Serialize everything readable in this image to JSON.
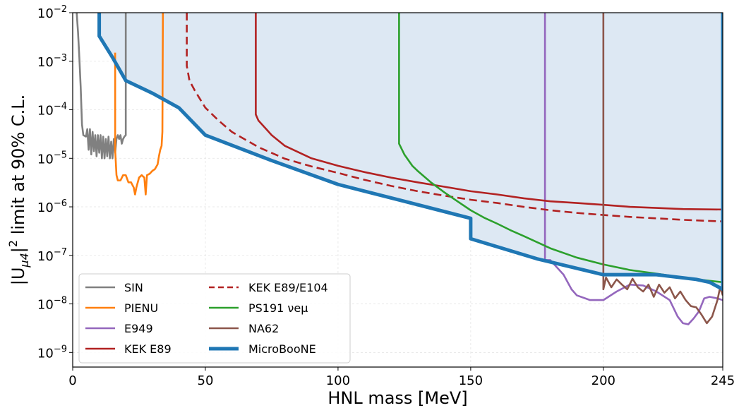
{
  "chart_data": {
    "type": "line",
    "xlabel": "HNL mass [MeV]",
    "ylabel_parts": {
      "pre": "|U",
      "sub": "μ4",
      "sup": "2",
      "post": " limit at 90% C.L."
    },
    "log_y": true,
    "xlim": [
      0,
      245
    ],
    "ylim": [
      5e-10,
      0.01
    ],
    "x_ticks": [
      0,
      50,
      100,
      150,
      200,
      245
    ],
    "x_tick_labels": [
      "0",
      "50",
      "100",
      "150",
      "200",
      "245"
    ],
    "y_ticks": [
      1e-09,
      1e-08,
      1e-07,
      1e-06,
      1e-05,
      0.0001,
      0.001,
      0.01
    ],
    "y_tick_labels": [
      {
        "base": "10",
        "exp": "−9"
      },
      {
        "base": "10",
        "exp": "−8"
      },
      {
        "base": "10",
        "exp": "−7"
      },
      {
        "base": "10",
        "exp": "−6"
      },
      {
        "base": "10",
        "exp": "−5"
      },
      {
        "base": "10",
        "exp": "−4"
      },
      {
        "base": "10",
        "exp": "−3"
      },
      {
        "base": "10",
        "exp": "−2"
      }
    ],
    "grid": true,
    "legend_position": "lower-left",
    "shaded_region": {
      "color": "#dde8f3",
      "bounded_by": "MicroBooNE"
    },
    "series": [
      {
        "name": "SIN",
        "color": "#808080",
        "dash": false,
        "points": [
          [
            1.5,
            0.01
          ],
          [
            2,
            0.004
          ],
          [
            2.5,
            0.0012
          ],
          [
            3,
            0.0003
          ],
          [
            3.5,
            5e-05
          ],
          [
            4,
            3e-05
          ],
          [
            5,
            2.8e-05
          ],
          [
            5.5,
            4e-05
          ],
          [
            6,
            1.5e-05
          ],
          [
            6.5,
            4e-05
          ],
          [
            7,
            1.2e-05
          ],
          [
            7.5,
            3.5e-05
          ],
          [
            8,
            1.4e-05
          ],
          [
            8.5,
            3e-05
          ],
          [
            9,
            1.1e-05
          ],
          [
            9.5,
            3e-05
          ],
          [
            10,
            1.3e-05
          ],
          [
            10.5,
            3e-05
          ],
          [
            11,
            1e-05
          ],
          [
            11.5,
            2.8e-05
          ],
          [
            12,
            1e-05
          ],
          [
            12.5,
            2.5e-05
          ],
          [
            13,
            1.1e-05
          ],
          [
            13.5,
            2.8e-05
          ],
          [
            14,
            1e-05
          ],
          [
            14.5,
            2.2e-05
          ],
          [
            15,
            1e-05
          ],
          [
            15.5,
            2.5e-05
          ],
          [
            16,
            1.3e-05
          ],
          [
            16.5,
            2.5e-05
          ],
          [
            17,
            3e-05
          ],
          [
            17.5,
            2.5e-05
          ],
          [
            18,
            3e-05
          ],
          [
            18.5,
            2e-05
          ],
          [
            19,
            2.5e-05
          ],
          [
            19.5,
            2.8e-05
          ],
          [
            20,
            3e-05
          ],
          [
            20,
            0.01
          ]
        ]
      },
      {
        "name": "PIENU",
        "color": "#ff7f0e",
        "dash": false,
        "points": [
          [
            16,
            0.0015
          ],
          [
            16,
            1.5e-05
          ],
          [
            16.5,
            4.5e-06
          ],
          [
            17,
            3.5e-06
          ],
          [
            18,
            3.5e-06
          ],
          [
            19,
            4.5e-06
          ],
          [
            20,
            4.5e-06
          ],
          [
            21,
            3.2e-06
          ],
          [
            22,
            3.2e-06
          ],
          [
            23,
            2.5e-06
          ],
          [
            23.5,
            1.8e-06
          ],
          [
            24,
            2.5e-06
          ],
          [
            25,
            4e-06
          ],
          [
            26,
            4.5e-06
          ],
          [
            27,
            4e-06
          ],
          [
            27.5,
            1.8e-06
          ],
          [
            28,
            4.5e-06
          ],
          [
            29,
            4.8e-06
          ],
          [
            30,
            5.5e-06
          ],
          [
            31,
            6e-06
          ],
          [
            32,
            7.5e-06
          ],
          [
            32.5,
            1.1e-05
          ],
          [
            33,
            1.5e-05
          ],
          [
            33.5,
            1.8e-05
          ],
          [
            33.8,
            3.5e-05
          ],
          [
            34,
            0.01
          ]
        ]
      },
      {
        "name": "E949",
        "color": "#9467bd",
        "dash": false,
        "points": [
          [
            178,
            0.01
          ],
          [
            178,
            8e-08
          ],
          [
            180,
            8e-08
          ],
          [
            185,
            4e-08
          ],
          [
            188,
            2e-08
          ],
          [
            190,
            1.5e-08
          ],
          [
            195,
            1.2e-08
          ],
          [
            200,
            1.2e-08
          ],
          [
            205,
            1.8e-08
          ],
          [
            210,
            2.5e-08
          ],
          [
            215,
            2.4e-08
          ],
          [
            220,
            1.8e-08
          ],
          [
            225,
            1.2e-08
          ],
          [
            228,
            5.5e-09
          ],
          [
            230,
            4e-09
          ],
          [
            232,
            3.8e-09
          ],
          [
            234,
            5e-09
          ],
          [
            236,
            7e-09
          ],
          [
            238,
            1.3e-08
          ],
          [
            240,
            1.4e-08
          ],
          [
            243,
            1.3e-08
          ],
          [
            245,
            1.2e-08
          ]
        ]
      },
      {
        "name": "KEK E89",
        "color": "#b22222",
        "dash": false,
        "points": [
          [
            69,
            0.01
          ],
          [
            69,
            8e-05
          ],
          [
            70,
            6e-05
          ],
          [
            75,
            3e-05
          ],
          [
            80,
            1.8e-05
          ],
          [
            90,
            1e-05
          ],
          [
            100,
            7e-06
          ],
          [
            110,
            5.2e-06
          ],
          [
            120,
            4e-06
          ],
          [
            130,
            3.2e-06
          ],
          [
            140,
            2.6e-06
          ],
          [
            150,
            2.1e-06
          ],
          [
            160,
            1.8e-06
          ],
          [
            170,
            1.5e-06
          ],
          [
            180,
            1.3e-06
          ],
          [
            190,
            1.2e-06
          ],
          [
            200,
            1.1e-06
          ],
          [
            210,
            1e-06
          ],
          [
            220,
            9.5e-07
          ],
          [
            230,
            9e-07
          ],
          [
            245,
            8.8e-07
          ]
        ]
      },
      {
        "name": "KEK E89/E104",
        "color": "#b22222",
        "dash": true,
        "points": [
          [
            43,
            0.01
          ],
          [
            43,
            0.0008
          ],
          [
            44,
            0.0004
          ],
          [
            46,
            0.00025
          ],
          [
            50,
            0.00011
          ],
          [
            55,
            6e-05
          ],
          [
            60,
            3.5e-05
          ],
          [
            70,
            1.7e-05
          ],
          [
            80,
            9.8e-06
          ],
          [
            90,
            6.8e-06
          ],
          [
            100,
            5e-06
          ],
          [
            110,
            3.6e-06
          ],
          [
            120,
            2.7e-06
          ],
          [
            130,
            2.1e-06
          ],
          [
            140,
            1.7e-06
          ],
          [
            150,
            1.4e-06
          ],
          [
            160,
            1.2e-06
          ],
          [
            170,
            1e-06
          ],
          [
            180,
            8.5e-07
          ],
          [
            190,
            7.5e-07
          ],
          [
            200,
            6.8e-07
          ],
          [
            210,
            6.2e-07
          ],
          [
            220,
            5.8e-07
          ],
          [
            230,
            5.4e-07
          ],
          [
            245,
            5e-07
          ]
        ]
      },
      {
        "name": "PS191 νeμ",
        "color": "#2ca02c",
        "dash": false,
        "points": [
          [
            123,
            0.01
          ],
          [
            123,
            2e-05
          ],
          [
            125,
            1.2e-05
          ],
          [
            128,
            7e-06
          ],
          [
            130,
            5.5e-06
          ],
          [
            135,
            3.2e-06
          ],
          [
            140,
            2e-06
          ],
          [
            145,
            1.3e-06
          ],
          [
            150,
            8.5e-07
          ],
          [
            155,
            6e-07
          ],
          [
            160,
            4.5e-07
          ],
          [
            165,
            3.3e-07
          ],
          [
            170,
            2.5e-07
          ],
          [
            180,
            1.4e-07
          ],
          [
            190,
            9e-08
          ],
          [
            200,
            6.5e-08
          ],
          [
            210,
            5e-08
          ],
          [
            220,
            4.2e-08
          ],
          [
            230,
            3.5e-08
          ],
          [
            240,
            3e-08
          ],
          [
            245,
            2.8e-08
          ]
        ]
      },
      {
        "name": "NA62",
        "color": "#8c564b",
        "dash": false,
        "points": [
          [
            200,
            0.01
          ],
          [
            200,
            2e-08
          ],
          [
            201,
            3.5e-08
          ],
          [
            203,
            2.2e-08
          ],
          [
            205,
            3.2e-08
          ],
          [
            207,
            2.5e-08
          ],
          [
            209,
            2e-08
          ],
          [
            211,
            3.3e-08
          ],
          [
            213,
            2.2e-08
          ],
          [
            215,
            1.8e-08
          ],
          [
            217,
            2.5e-08
          ],
          [
            219,
            1.4e-08
          ],
          [
            221,
            2.5e-08
          ],
          [
            223,
            1.7e-08
          ],
          [
            225,
            2.2e-08
          ],
          [
            227,
            1.3e-08
          ],
          [
            229,
            1.8e-08
          ],
          [
            231,
            1.2e-08
          ],
          [
            233,
            9e-09
          ],
          [
            235,
            8.5e-09
          ],
          [
            237,
            6e-09
          ],
          [
            239,
            4e-09
          ],
          [
            241,
            5.5e-09
          ],
          [
            243,
            1.2e-08
          ],
          [
            244,
            2.2e-08
          ],
          [
            245,
            1.5e-08
          ]
        ]
      },
      {
        "name": "MicroBooNE",
        "color": "#1f77b4",
        "dash": false,
        "thick": true,
        "points": [
          [
            10,
            0.01
          ],
          [
            10,
            0.0033
          ],
          [
            15,
            0.0012
          ],
          [
            20,
            0.0004
          ],
          [
            30,
            0.00022
          ],
          [
            40,
            0.00011
          ],
          [
            50,
            3e-05
          ],
          [
            75,
            9e-06
          ],
          [
            100,
            2.9e-06
          ],
          [
            125,
            1.3e-06
          ],
          [
            150,
            5.8e-07
          ],
          [
            150,
            2.2e-07
          ],
          [
            175,
            8.5e-08
          ],
          [
            200,
            4e-08
          ],
          [
            220,
            4e-08
          ],
          [
            235,
            3.2e-08
          ],
          [
            240,
            2.8e-08
          ],
          [
            245,
            2e-08
          ],
          [
            245,
            0.01
          ]
        ]
      }
    ]
  }
}
